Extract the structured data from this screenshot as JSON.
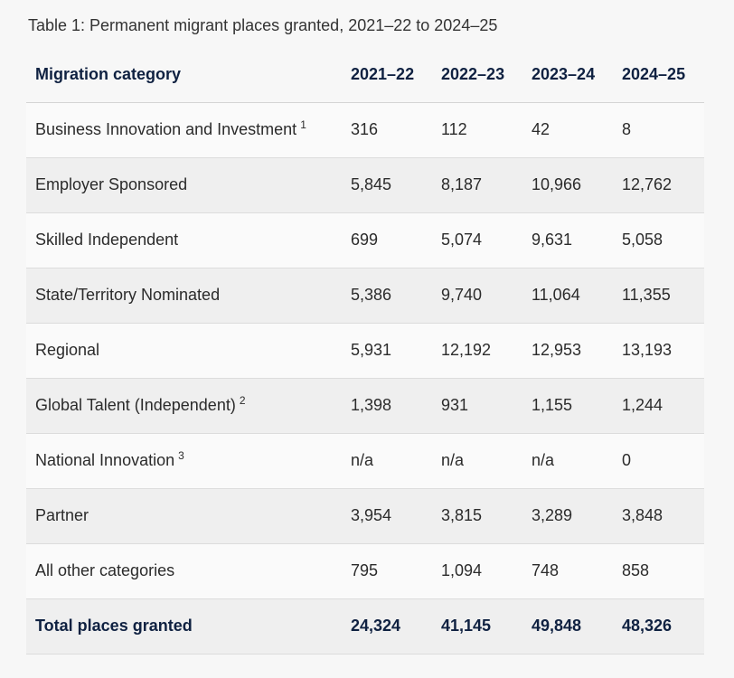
{
  "caption": "Table 1: Permanent migrant places granted, 2021–22 to 2024–25",
  "table": {
    "headers": [
      "Migration category",
      "2021–22",
      "2022–23",
      "2023–24",
      "2024–25"
    ],
    "rows": [
      {
        "category": "Business Innovation and Investment",
        "footnote": "1",
        "values": [
          "316",
          "112",
          "42",
          "8"
        ]
      },
      {
        "category": "Employer Sponsored",
        "footnote": "",
        "values": [
          "5,845",
          "8,187",
          "10,966",
          "12,762"
        ]
      },
      {
        "category": "Skilled Independent",
        "footnote": "",
        "values": [
          "699",
          "5,074",
          "9,631",
          "5,058"
        ]
      },
      {
        "category": "State/Territory Nominated",
        "footnote": "",
        "values": [
          "5,386",
          "9,740",
          "11,064",
          "11,355"
        ]
      },
      {
        "category": "Regional",
        "footnote": "",
        "values": [
          "5,931",
          "12,192",
          "12,953",
          "13,193"
        ]
      },
      {
        "category": "Global Talent (Independent)",
        "footnote": "2",
        "values": [
          "1,398",
          "931",
          "1,155",
          "1,244"
        ]
      },
      {
        "category": "National Innovation",
        "footnote": "3",
        "values": [
          "n/a",
          "n/a",
          "n/a",
          "0"
        ]
      },
      {
        "category": "Partner",
        "footnote": "",
        "values": [
          "3,954",
          "3,815",
          "3,289",
          "3,848"
        ]
      },
      {
        "category": "All other categories",
        "footnote": "",
        "values": [
          "795",
          "1,094",
          "748",
          "858"
        ]
      }
    ],
    "total": {
      "label": "Total places granted",
      "values": [
        "24,324",
        "41,145",
        "49,848",
        "48,326"
      ]
    }
  },
  "colors": {
    "header_text": "#0f2141",
    "stripe_light": "#fafafa",
    "stripe_dark": "#efefef",
    "background": "#f7f7f7"
  }
}
